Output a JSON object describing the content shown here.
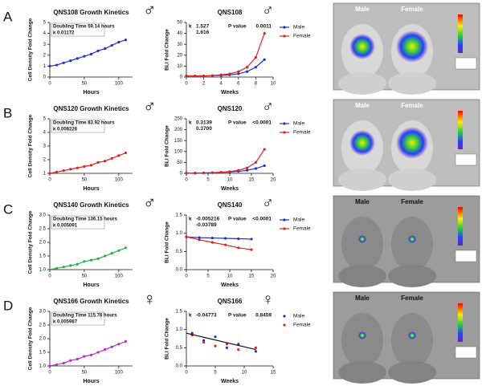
{
  "panels": [
    {
      "label": "A",
      "sex_symbol": "♂",
      "bli_symbol": "♂",
      "image": {
        "labels": [
          "Male",
          "Female"
        ]
      }
    },
    {
      "label": "B",
      "sex_symbol": "♂",
      "bli_symbol": "♂",
      "image": {
        "labels": [
          "Male",
          "Female"
        ]
      }
    },
    {
      "label": "C",
      "sex_symbol": "♂",
      "bli_symbol": "♂",
      "image": {
        "labels": [
          "Male",
          "Female"
        ]
      }
    },
    {
      "label": "D",
      "sex_symbol": "♀",
      "bli_symbol": "♀",
      "image": {
        "labels": [
          "Male",
          "Female"
        ]
      }
    }
  ],
  "chart_data": [
    {
      "type": "line",
      "title": "QNS108 Growth Kinetics",
      "xlabel": "Hours",
      "ylabel": "Cell Density Fold Change",
      "color": "#1f2fd6",
      "annotations": [
        "Doubling Time 59.14 hours",
        "k    0.01172"
      ],
      "x": [
        0,
        10,
        20,
        30,
        40,
        50,
        60,
        70,
        80,
        90,
        100,
        110
      ],
      "series": [
        {
          "color": "#1f2fd6",
          "values": [
            1,
            1.1,
            1.3,
            1.5,
            1.7,
            1.9,
            2.1,
            2.4,
            2.6,
            2.9,
            3.2,
            3.4
          ]
        }
      ],
      "xlim": [
        0,
        120
      ],
      "ylim": [
        0,
        5
      ],
      "xticks": [
        0,
        50,
        100
      ],
      "yticks": [
        0,
        1,
        2,
        3,
        4,
        5
      ]
    },
    {
      "type": "line",
      "title": "QNS108",
      "xlabel": "Weeks",
      "ylabel": "BLI Fold Change",
      "legend": true,
      "x": [
        0,
        1,
        2,
        3,
        4,
        5,
        6,
        7,
        8,
        9
      ],
      "series": [
        {
          "name": "Male",
          "color": "#1f2fd6",
          "values": [
            1,
            1,
            1,
            1.2,
            1.5,
            2,
            3,
            5,
            9,
            16
          ]
        },
        {
          "name": "Female",
          "color": "#e02020",
          "values": [
            1,
            1,
            1,
            1.3,
            2,
            3,
            5,
            9,
            18,
            40
          ]
        }
      ],
      "stats": {
        "k_label": "k",
        "k": [
          {
            "text": "1.527",
            "color": "#1f2fd6"
          },
          {
            "text": "1.616",
            "color": "#e02020"
          }
        ],
        "p_label": "P value",
        "p": "0.0011"
      },
      "xlim": [
        0,
        10
      ],
      "ylim": [
        0,
        50
      ],
      "xticks": [
        0,
        2,
        4,
        6,
        8,
        10
      ],
      "yticks": [
        0,
        10,
        20,
        30,
        40,
        50
      ]
    },
    {
      "type": "line",
      "title": "QNS120 Growth  Kinetics",
      "xlabel": "Hours",
      "ylabel": "Cell Density Fold Change",
      "color": "#e02020",
      "annotations": [
        "Doubling Time 83.92 hours",
        "k    0.008226"
      ],
      "x": [
        0,
        10,
        20,
        30,
        40,
        50,
        60,
        70,
        80,
        90,
        100,
        110
      ],
      "series": [
        {
          "color": "#e02020",
          "values": [
            1,
            1.1,
            1.2,
            1.3,
            1.4,
            1.5,
            1.6,
            1.8,
            1.9,
            2.1,
            2.3,
            2.5
          ]
        }
      ],
      "xlim": [
        0,
        120
      ],
      "ylim": [
        1,
        5
      ],
      "xticks": [
        0,
        50,
        100
      ],
      "yticks": [
        1,
        2,
        3,
        4,
        5
      ]
    },
    {
      "type": "line",
      "title": "QNS120",
      "xlabel": "Weeks",
      "ylabel": "BLI Fold Change",
      "legend": true,
      "x": [
        0,
        2,
        4,
        6,
        8,
        10,
        12,
        14,
        16,
        18
      ],
      "series": [
        {
          "name": "Male",
          "color": "#1f2fd6",
          "values": [
            1,
            1,
            2,
            3,
            4,
            6,
            9,
            14,
            22,
            35
          ]
        },
        {
          "name": "Female",
          "color": "#e02020",
          "values": [
            1,
            1,
            2,
            3,
            5,
            8,
            14,
            25,
            50,
            110
          ]
        }
      ],
      "stats": {
        "k_label": "k",
        "k": [
          {
            "text": "0.3139",
            "color": "#1f2fd6"
          },
          {
            "text": "0.3700",
            "color": "#e02020"
          }
        ],
        "p_label": "P value",
        "p": "<0.0001"
      },
      "xlim": [
        0,
        20
      ],
      "ylim": [
        0,
        250
      ],
      "xticks": [
        0,
        5,
        10,
        15,
        20
      ],
      "yticks": [
        0,
        50,
        100,
        150,
        200,
        250
      ]
    },
    {
      "type": "line",
      "title": "QNS140 Growth Kinetics",
      "xlabel": "Hours",
      "ylabel": "Cell Density Fold Change",
      "color": "#22b14c",
      "annotations": [
        "Doubling Time 136.15 hours",
        "k    0.005091"
      ],
      "x": [
        0,
        10,
        20,
        30,
        40,
        50,
        60,
        70,
        80,
        90,
        100,
        110
      ],
      "series": [
        {
          "color": "#22b14c",
          "values": [
            1,
            1.05,
            1.1,
            1.15,
            1.2,
            1.3,
            1.35,
            1.4,
            1.5,
            1.6,
            1.7,
            1.8
          ]
        }
      ],
      "xlim": [
        0,
        120
      ],
      "ylim": [
        1,
        3
      ],
      "xticks": [
        0,
        50,
        100
      ],
      "yticks": [
        {
          "value": 1,
          "label": "1.0"
        },
        1.5,
        {
          "value": 2,
          "label": "2.0"
        },
        2.5,
        {
          "value": 3,
          "label": "3.0"
        }
      ]
    },
    {
      "type": "line",
      "title": "QNS140",
      "xlabel": "Weeks",
      "ylabel": "BLI Fold Change",
      "legend": true,
      "x": [
        0,
        3,
        6,
        9,
        12,
        15
      ],
      "series": [
        {
          "name": "Male",
          "color": "#1f2fd6",
          "values": [
            0.9,
            0.88,
            0.87,
            0.86,
            0.85,
            0.84
          ]
        },
        {
          "name": "Female",
          "color": "#e02020",
          "values": [
            0.9,
            0.82,
            0.75,
            0.68,
            0.6,
            0.55
          ]
        }
      ],
      "stats": {
        "k_label": "k",
        "k": [
          {
            "text": "-0.005216",
            "color": "#1f2fd6"
          },
          {
            "text": "-0.03789",
            "color": "#e02020"
          }
        ],
        "p_label": "P value",
        "p": "<0.0001"
      },
      "xlim": [
        0,
        20
      ],
      "ylim": [
        0,
        1.5
      ],
      "xticks": [
        0,
        5,
        10,
        15,
        20
      ],
      "yticks": [
        {
          "value": 0,
          "label": "0.0"
        },
        0.5,
        {
          "value": 1,
          "label": "1.0"
        },
        1.5
      ]
    },
    {
      "type": "line",
      "title": "QNS166  Growth Kinetics",
      "xlabel": "Hours",
      "ylabel": "Cell Density Fold Change",
      "color": "#b030d0",
      "annotations": [
        "Doubling Time 115.78 hours",
        "k    0.005987"
      ],
      "x": [
        0,
        10,
        20,
        30,
        40,
        50,
        60,
        70,
        80,
        90,
        100,
        110
      ],
      "series": [
        {
          "color": "#b030d0",
          "values": [
            1,
            1.05,
            1.1,
            1.2,
            1.25,
            1.35,
            1.4,
            1.5,
            1.6,
            1.7,
            1.8,
            1.9
          ]
        }
      ],
      "xlim": [
        0,
        120
      ],
      "ylim": [
        1,
        3
      ],
      "xticks": [
        0,
        50,
        100
      ],
      "yticks": [
        {
          "value": 1,
          "label": "1.0"
        },
        1.5,
        {
          "value": 2,
          "label": "2.0"
        },
        2.5,
        {
          "value": 3,
          "label": "3.0"
        }
      ]
    },
    {
      "type": "scatter",
      "title": "QNS166",
      "xlabel": "Weeks",
      "ylabel": "BLI Fold  Change",
      "legend": true,
      "x": [
        1,
        3,
        5,
        7,
        9,
        12
      ],
      "series": [
        {
          "name": "Male",
          "color": "#1f2fd6",
          "values": [
            0.9,
            0.7,
            0.8,
            0.5,
            0.6,
            0.4
          ]
        },
        {
          "name": "Female",
          "color": "#e02020",
          "values": [
            0.85,
            0.65,
            0.55,
            0.6,
            0.45,
            0.5
          ]
        }
      ],
      "fit": {
        "color": "#111111",
        "x": [
          0,
          12
        ],
        "values": [
          0.9,
          0.45
        ]
      },
      "stats": {
        "k_label": "k",
        "k": [
          {
            "text": "-0.04773",
            "color": "#111111"
          }
        ],
        "p_label": "P value",
        "p": "0.8459"
      },
      "xlim": [
        0,
        15
      ],
      "ylim": [
        0,
        1.5
      ],
      "xticks": [
        0,
        5,
        10,
        15
      ],
      "yticks": [
        {
          "value": 0,
          "label": "0.0"
        },
        0.5,
        {
          "value": 1,
          "label": "1.0"
        },
        1.5
      ]
    }
  ]
}
